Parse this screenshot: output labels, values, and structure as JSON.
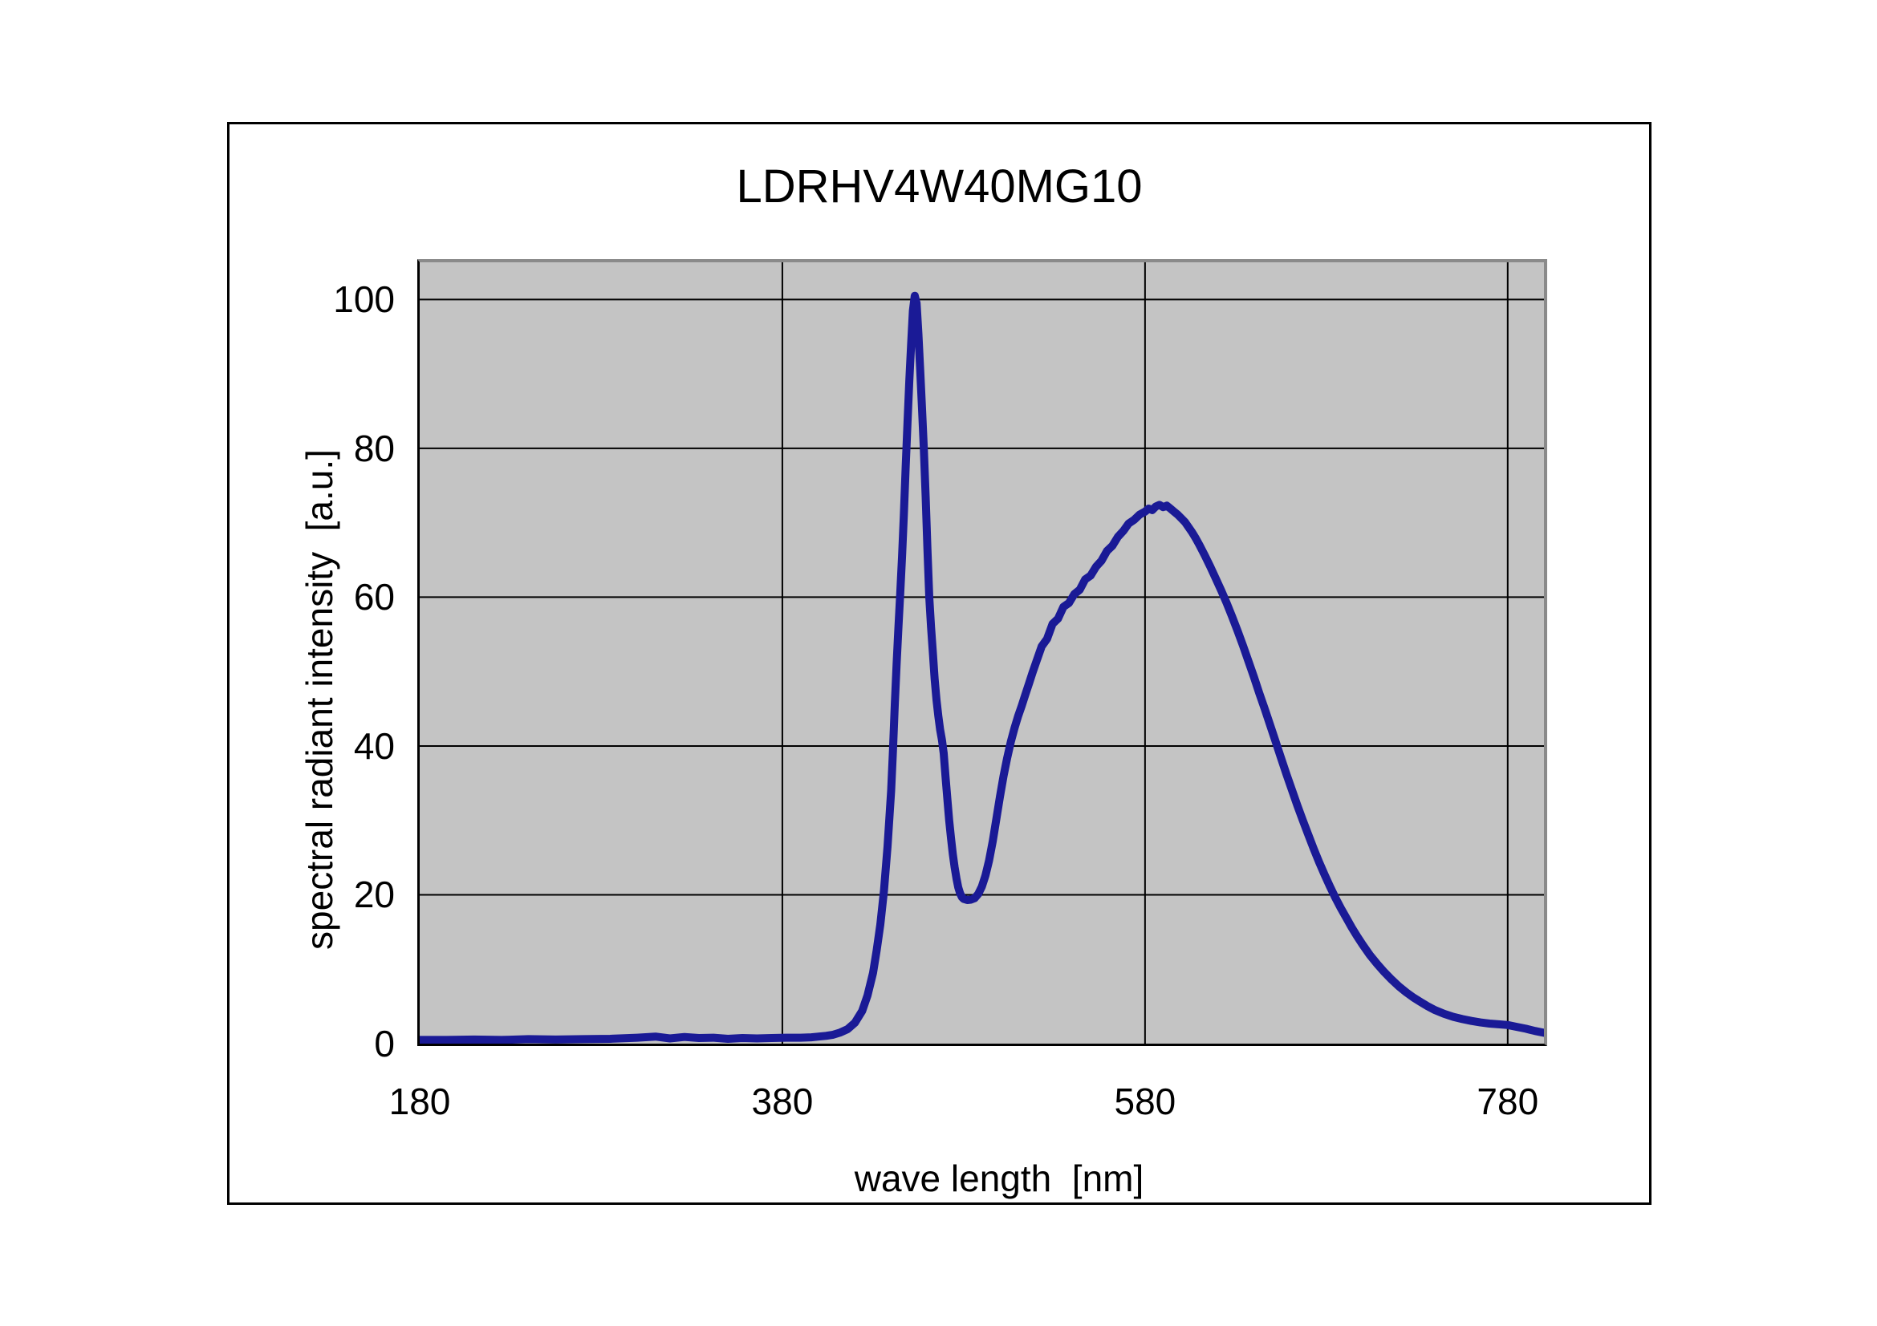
{
  "figure": {
    "title": "LDRHV4W40MG10"
  },
  "chart_data": {
    "type": "line",
    "title": "LDRHV4W40MG10",
    "xlabel": "wave length  [nm]",
    "ylabel": "spectral radiant intensity  [a.u.]",
    "xlim": [
      180,
      800
    ],
    "ylim": [
      0,
      105
    ],
    "x_ticks": [
      180,
      380,
      580,
      780
    ],
    "y_ticks": [
      0,
      20,
      40,
      60,
      80,
      100
    ],
    "x_gridlines": [
      380,
      580,
      780
    ],
    "y_gridlines": [
      20,
      40,
      60,
      80,
      100
    ],
    "grid": true,
    "legend_position": "none",
    "series": [
      {
        "name": "spectral radiant intensity",
        "color": "#1a1a96",
        "points": [
          [
            180,
            0.5
          ],
          [
            195,
            0.5
          ],
          [
            210,
            0.55
          ],
          [
            225,
            0.5
          ],
          [
            240,
            0.6
          ],
          [
            255,
            0.55
          ],
          [
            270,
            0.6
          ],
          [
            285,
            0.65
          ],
          [
            300,
            0.8
          ],
          [
            310,
            0.95
          ],
          [
            318,
            0.7
          ],
          [
            326,
            0.9
          ],
          [
            334,
            0.75
          ],
          [
            342,
            0.8
          ],
          [
            350,
            0.65
          ],
          [
            358,
            0.75
          ],
          [
            366,
            0.7
          ],
          [
            374,
            0.75
          ],
          [
            382,
            0.8
          ],
          [
            390,
            0.8
          ],
          [
            396,
            0.85
          ],
          [
            400,
            0.95
          ],
          [
            404,
            1.05
          ],
          [
            408,
            1.2
          ],
          [
            412,
            1.5
          ],
          [
            416,
            1.95
          ],
          [
            420,
            2.8
          ],
          [
            424,
            4.4
          ],
          [
            427,
            6.5
          ],
          [
            430,
            9.5
          ],
          [
            432,
            12.5
          ],
          [
            434,
            16
          ],
          [
            436,
            20.5
          ],
          [
            438,
            26.5
          ],
          [
            440,
            34
          ],
          [
            441,
            39.5
          ],
          [
            442,
            45.5
          ],
          [
            443,
            51
          ],
          [
            444,
            56
          ],
          [
            445,
            60.5
          ],
          [
            446,
            65.5
          ],
          [
            447,
            71
          ],
          [
            448,
            77.5
          ],
          [
            449,
            83.5
          ],
          [
            450,
            89
          ],
          [
            451,
            94
          ],
          [
            452,
            98.5
          ],
          [
            453,
            100.5
          ],
          [
            454,
            99.5
          ],
          [
            455,
            95.5
          ],
          [
            456,
            90.5
          ],
          [
            457,
            85.5
          ],
          [
            458,
            80
          ],
          [
            459,
            73.5
          ],
          [
            460,
            66.5
          ],
          [
            461,
            60
          ],
          [
            462,
            56
          ],
          [
            463,
            52.5
          ],
          [
            464,
            49
          ],
          [
            465,
            46.2
          ],
          [
            466,
            44
          ],
          [
            467,
            42.2
          ],
          [
            468,
            40.8
          ],
          [
            469,
            39
          ],
          [
            470,
            35.8
          ],
          [
            471,
            32.8
          ],
          [
            472,
            30
          ],
          [
            473,
            27.6
          ],
          [
            474,
            25.5
          ],
          [
            475,
            23.7
          ],
          [
            476,
            22.2
          ],
          [
            477,
            21
          ],
          [
            478,
            20.2
          ],
          [
            479,
            19.7
          ],
          [
            480,
            19.45
          ],
          [
            482,
            19.3
          ],
          [
            484,
            19.35
          ],
          [
            486,
            19.55
          ],
          [
            488,
            20.1
          ],
          [
            490,
            21.1
          ],
          [
            492,
            22.6
          ],
          [
            494,
            24.6
          ],
          [
            496,
            27.2
          ],
          [
            498,
            30.2
          ],
          [
            500,
            33.2
          ],
          [
            502,
            36
          ],
          [
            504,
            38.4
          ],
          [
            506,
            40.6
          ],
          [
            508,
            42.4
          ],
          [
            510,
            44
          ],
          [
            512,
            45.4
          ],
          [
            514,
            46.9
          ],
          [
            516,
            48.4
          ],
          [
            518,
            49.9
          ],
          [
            520,
            51.3
          ],
          [
            523,
            53.4
          ],
          [
            526,
            54.4
          ],
          [
            529,
            56.4
          ],
          [
            532,
            57.1
          ],
          [
            535,
            58.7
          ],
          [
            538,
            59.2
          ],
          [
            541,
            60.4
          ],
          [
            544,
            61
          ],
          [
            547,
            62.4
          ],
          [
            550,
            62.9
          ],
          [
            553,
            64.1
          ],
          [
            556,
            64.9
          ],
          [
            559,
            66.2
          ],
          [
            562,
            66.9
          ],
          [
            565,
            68.1
          ],
          [
            568,
            68.9
          ],
          [
            571,
            69.9
          ],
          [
            574,
            70.4
          ],
          [
            577,
            71.1
          ],
          [
            580,
            71.5
          ],
          [
            582,
            71.9
          ],
          [
            584,
            71.7
          ],
          [
            586,
            72.2
          ],
          [
            588,
            72.4
          ],
          [
            590,
            72.1
          ],
          [
            592,
            72.3
          ],
          [
            594,
            71.9
          ],
          [
            596,
            71.5
          ],
          [
            598,
            71.1
          ],
          [
            600,
            70.6
          ],
          [
            602,
            70.1
          ],
          [
            604,
            69.4
          ],
          [
            606,
            68.7
          ],
          [
            608,
            67.9
          ],
          [
            610,
            67
          ],
          [
            613,
            65.6
          ],
          [
            616,
            64.1
          ],
          [
            619,
            62.5
          ],
          [
            622,
            60.9
          ],
          [
            625,
            59.2
          ],
          [
            628,
            57.4
          ],
          [
            631,
            55.5
          ],
          [
            634,
            53.5
          ],
          [
            637,
            51.4
          ],
          [
            640,
            49.3
          ],
          [
            643,
            47.1
          ],
          [
            646,
            45
          ],
          [
            649,
            42.8
          ],
          [
            652,
            40.6
          ],
          [
            655,
            38.4
          ],
          [
            658,
            36.2
          ],
          [
            661,
            34.1
          ],
          [
            664,
            32
          ],
          [
            667,
            30
          ],
          [
            670,
            28.1
          ],
          [
            673,
            26.2
          ],
          [
            676,
            24.4
          ],
          [
            679,
            22.7
          ],
          [
            682,
            21.1
          ],
          [
            685,
            19.6
          ],
          [
            688,
            18.2
          ],
          [
            691,
            16.9
          ],
          [
            694,
            15.6
          ],
          [
            697,
            14.4
          ],
          [
            700,
            13.3
          ],
          [
            704,
            11.9
          ],
          [
            708,
            10.7
          ],
          [
            712,
            9.6
          ],
          [
            716,
            8.6
          ],
          [
            720,
            7.7
          ],
          [
            724,
            6.9
          ],
          [
            728,
            6.2
          ],
          [
            732,
            5.6
          ],
          [
            736,
            5
          ],
          [
            740,
            4.5
          ],
          [
            745,
            4
          ],
          [
            750,
            3.6
          ],
          [
            755,
            3.3
          ],
          [
            760,
            3.05
          ],
          [
            765,
            2.85
          ],
          [
            770,
            2.7
          ],
          [
            775,
            2.6
          ],
          [
            780,
            2.5
          ],
          [
            785,
            2.25
          ],
          [
            790,
            2
          ],
          [
            795,
            1.7
          ],
          [
            800,
            1.45
          ]
        ]
      }
    ]
  },
  "colors": {
    "page_background": "#ffffff",
    "plot_background": "#c4c4c4",
    "gridline": "#000000",
    "axis": "#000000",
    "plot_shadow_border": "#8a8a8a",
    "frame_border": "#000000",
    "series": "#1a1a96",
    "text": "#000000"
  }
}
